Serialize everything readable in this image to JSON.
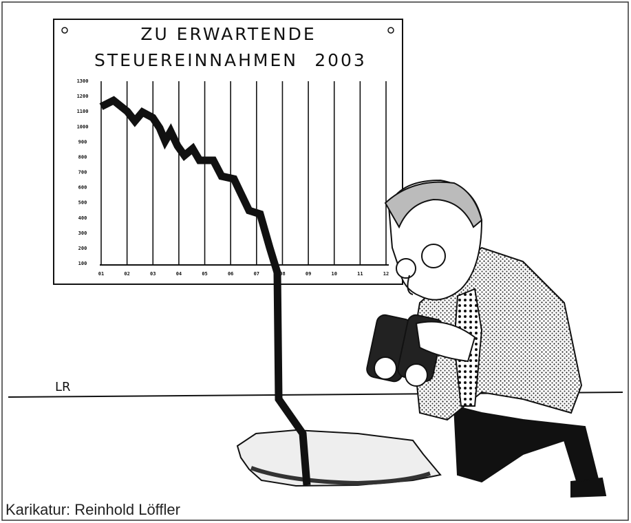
{
  "board": {
    "title_line1": "ZU ERWARTENDE",
    "title_line2": "STEUEREINNAHMEN",
    "year": "2003",
    "y_labels": [
      "1300",
      "1200",
      "1100",
      "1000",
      "900",
      "800",
      "700",
      "600",
      "500",
      "400",
      "300",
      "200",
      "100"
    ],
    "x_labels": [
      "01",
      "02",
      "03",
      "04",
      "05",
      "06",
      "07",
      "08",
      "09",
      "10",
      "11",
      "12"
    ]
  },
  "signature": "LR",
  "caption": "Karikatur: Reinhold Löffler"
}
